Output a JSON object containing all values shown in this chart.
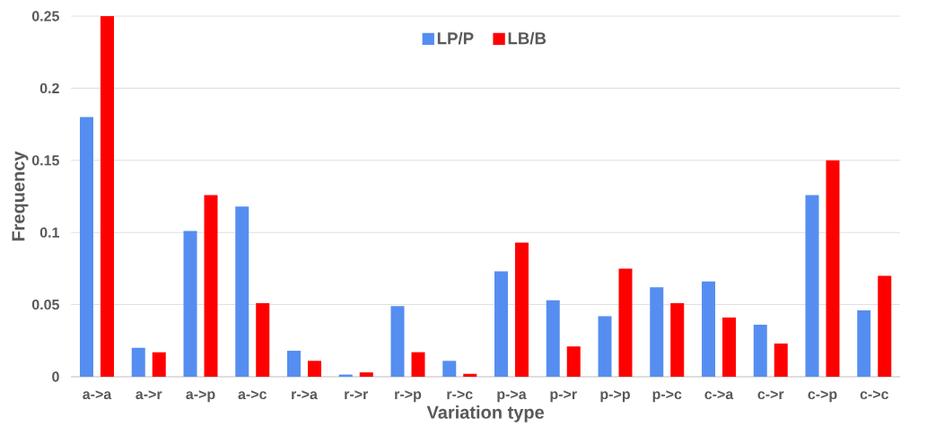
{
  "chart_data": {
    "type": "bar",
    "xlabel": "Variation type",
    "ylabel": "Frequency",
    "categories": [
      "a->a",
      "a->r",
      "a->p",
      "a->c",
      "r->a",
      "r->r",
      "r->p",
      "r->c",
      "p->a",
      "p->r",
      "p->p",
      "p->c",
      "c->a",
      "c->r",
      "c->p",
      "c->c"
    ],
    "series": [
      {
        "name": "LP/P",
        "color": "#558ef0",
        "values": [
          0.18,
          0.02,
          0.101,
          0.118,
          0.018,
          0.0015,
          0.049,
          0.011,
          0.073,
          0.053,
          0.042,
          0.062,
          0.066,
          0.036,
          0.126,
          0.046
        ]
      },
      {
        "name": "LB/B",
        "color": "#ff0000",
        "values": [
          0.25,
          0.017,
          0.126,
          0.051,
          0.011,
          0.003,
          0.017,
          0.002,
          0.093,
          0.021,
          0.075,
          0.051,
          0.041,
          0.023,
          0.15,
          0.07
        ]
      }
    ],
    "ylim": [
      0,
      0.25
    ],
    "yticks": [
      0,
      0.05,
      0.1,
      0.15,
      0.2,
      0.25
    ],
    "grid": "y",
    "legend": "top"
  }
}
